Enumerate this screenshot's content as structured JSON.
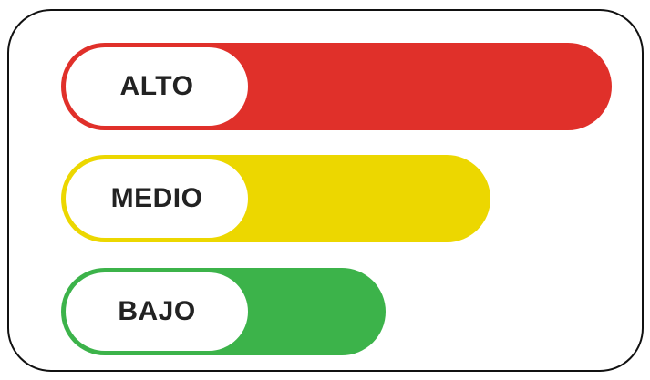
{
  "levels": [
    {
      "label": "ALTO",
      "fill": 1.0,
      "color": "#e0302a"
    },
    {
      "label": "MEDIO",
      "fill": 0.78,
      "color": "#ecd700"
    },
    {
      "label": "BAJO",
      "fill": 0.59,
      "color": "#3cb34a"
    }
  ]
}
